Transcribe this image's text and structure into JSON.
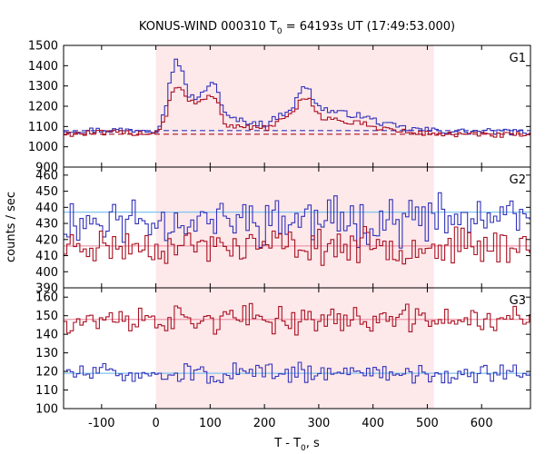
{
  "chart_data": {
    "type": "line",
    "title": "KONUS-WIND 000310 T",
    "title_sub": "0",
    "title_rest": " = 64193s UT (17:49:53.000)",
    "xlabel": "T - T",
    "xlabel_sub": "0",
    "xlabel_rest": ", s",
    "ylabel": "counts / sec",
    "xlim": [
      -170,
      690
    ],
    "x_ticks": [
      -100,
      0,
      100,
      200,
      300,
      400,
      500,
      600
    ],
    "shaded_region": [
      0,
      512
    ],
    "grid": false,
    "colors": {
      "blue": "#3333bb",
      "red": "#aa1122",
      "bg_blue": "#7fc4f0",
      "bg_red": "#ee99aa",
      "shade": "#fde8ea"
    },
    "panels": [
      {
        "label": "G1",
        "ylim": [
          900,
          1500
        ],
        "y_ticks": [
          900,
          1000,
          1100,
          1200,
          1300,
          1400,
          1500
        ],
        "background": {
          "blue": 1080,
          "red": 1062
        },
        "background_style": "dashed",
        "series": [
          {
            "color": "blue",
            "x": [
              -170,
              0,
              15,
              25,
              35,
              45,
              55,
              70,
              90,
              100,
              110,
              125,
              150,
              200,
              250,
              265,
              275,
              285,
              300,
              330,
              380,
              420,
              460,
              510,
              560,
              620,
              690
            ],
            "y": [
              1080,
              1085,
              1200,
              1350,
              1440,
              1380,
              1260,
              1240,
              1270,
              1330,
              1290,
              1150,
              1130,
              1110,
              1200,
              1280,
              1300,
              1250,
              1190,
              1170,
              1150,
              1110,
              1090,
              1080,
              1075,
              1075,
              1070
            ]
          },
          {
            "color": "red",
            "x": [
              -170,
              0,
              15,
              25,
              35,
              45,
              55,
              70,
              90,
              100,
              110,
              125,
              150,
              200,
              250,
              265,
              275,
              285,
              300,
              330,
              380,
              420,
              460,
              510,
              560,
              620,
              690
            ],
            "y": [
              1065,
              1070,
              1150,
              1260,
              1300,
              1280,
              1230,
              1215,
              1230,
              1260,
              1230,
              1110,
              1100,
              1090,
              1160,
              1230,
              1250,
              1210,
              1150,
              1130,
              1110,
              1090,
              1070,
              1065,
              1060,
              1058,
              1055
            ]
          }
        ]
      },
      {
        "label": "G2",
        "ylim": [
          390,
          465
        ],
        "y_ticks": [
          390,
          400,
          410,
          420,
          430,
          440,
          450,
          460
        ],
        "background": {
          "blue": 437,
          "red": 416
        },
        "background_style": "solid",
        "series": [
          {
            "color": "blue",
            "mean": 432,
            "spread": 14,
            "seed": 11
          },
          {
            "color": "red",
            "mean": 416,
            "spread": 10,
            "seed": 23
          }
        ]
      },
      {
        "label": "G3",
        "ylim": [
          100,
          165
        ],
        "y_ticks": [
          100,
          110,
          120,
          130,
          140,
          150,
          160
        ],
        "background": {
          "blue": 119,
          "red": 148
        },
        "background_style": "solid",
        "series": [
          {
            "color": "red",
            "mean": 148,
            "spread": 7,
            "seed": 37
          },
          {
            "color": "blue",
            "mean": 119,
            "spread": 5,
            "seed": 51
          }
        ]
      }
    ]
  }
}
